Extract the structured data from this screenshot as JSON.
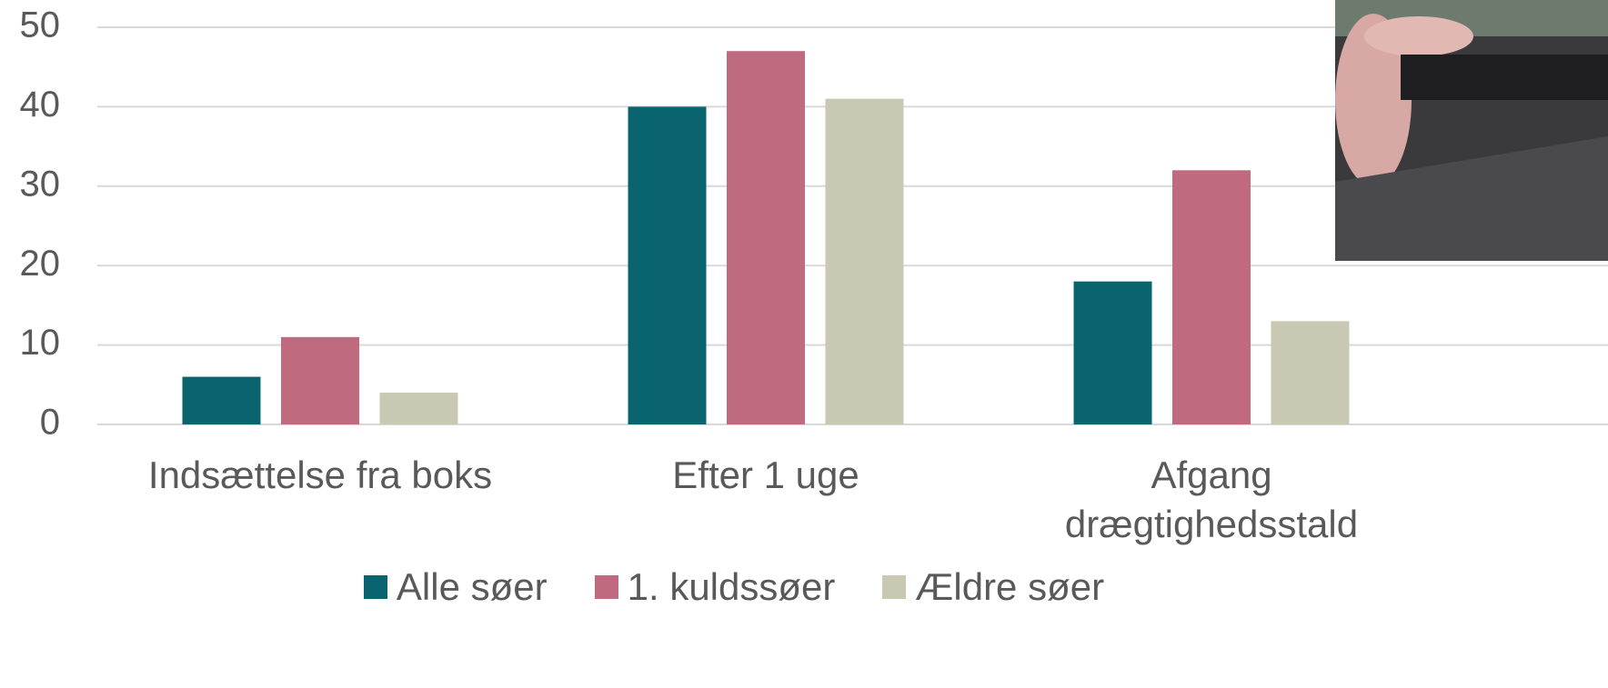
{
  "chart_data": {
    "type": "bar",
    "categories": [
      "Indsættelse fra boks",
      "Efter 1 uge",
      "Afgang drægtighedsstald"
    ],
    "series": [
      {
        "name": "Alle søer",
        "color": "#09646f",
        "values": [
          6,
          40,
          18
        ]
      },
      {
        "name": "1. kuldssøer",
        "color": "#c06a80",
        "values": [
          11,
          47,
          32
        ]
      },
      {
        "name": "Ældre søer",
        "color": "#c9c8b2",
        "values": [
          4,
          41,
          13
        ]
      }
    ],
    "ylim": [
      0,
      50
    ],
    "yticks": [
      0,
      10,
      20,
      30,
      40,
      50
    ],
    "grid": true
  }
}
